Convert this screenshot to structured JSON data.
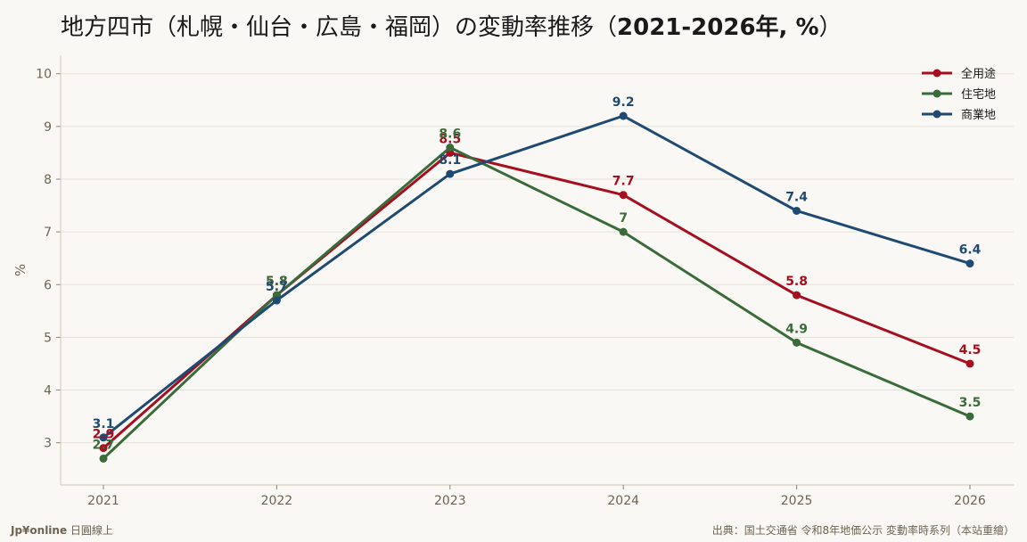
{
  "title": {
    "text": "地方四市（札幌・仙台・広島・福岡）の変動率推移（",
    "bold": "2021-2026年, %",
    "close": "）"
  },
  "footer": {
    "brand": "Jp¥online",
    "tagline": " 日圓線上",
    "source": "出典：国土交通省 令和8年地価公示 変動率時系列（本站重繪）"
  },
  "chart_data": {
    "type": "line",
    "title": "地方四市（札幌・仙台・広島・福岡）の変動率推移（2021-2026年, %）",
    "xlabel": "",
    "ylabel": "%",
    "x": [
      "2021",
      "2022",
      "2023",
      "2024",
      "2025",
      "2026"
    ],
    "ylim": [
      2.2,
      10.35
    ],
    "yticks": [
      3,
      4,
      5,
      6,
      7,
      8,
      9,
      10
    ],
    "grid": true,
    "legend_position": "top-right",
    "series": [
      {
        "name": "全用途",
        "color": "#a50f1f",
        "values": [
          2.9,
          5.8,
          8.5,
          7.7,
          5.8,
          4.5
        ]
      },
      {
        "name": "住宅地",
        "color": "#3a6b3a",
        "values": [
          2.7,
          5.8,
          8.6,
          7.0,
          4.9,
          3.5
        ]
      },
      {
        "name": "商業地",
        "color": "#1f4a72",
        "values": [
          3.1,
          5.7,
          8.1,
          9.2,
          7.4,
          6.4
        ]
      }
    ],
    "data_labels": [
      [
        "2.9",
        "5.8",
        "8.5",
        "7.7",
        "5.8",
        "4.5"
      ],
      [
        "2.7",
        "5.8",
        "8.6",
        "7",
        "4.9",
        "3.5"
      ],
      [
        "3.1",
        "5.7",
        "8.1",
        "9.2",
        "7.4",
        "6.4"
      ]
    ]
  }
}
